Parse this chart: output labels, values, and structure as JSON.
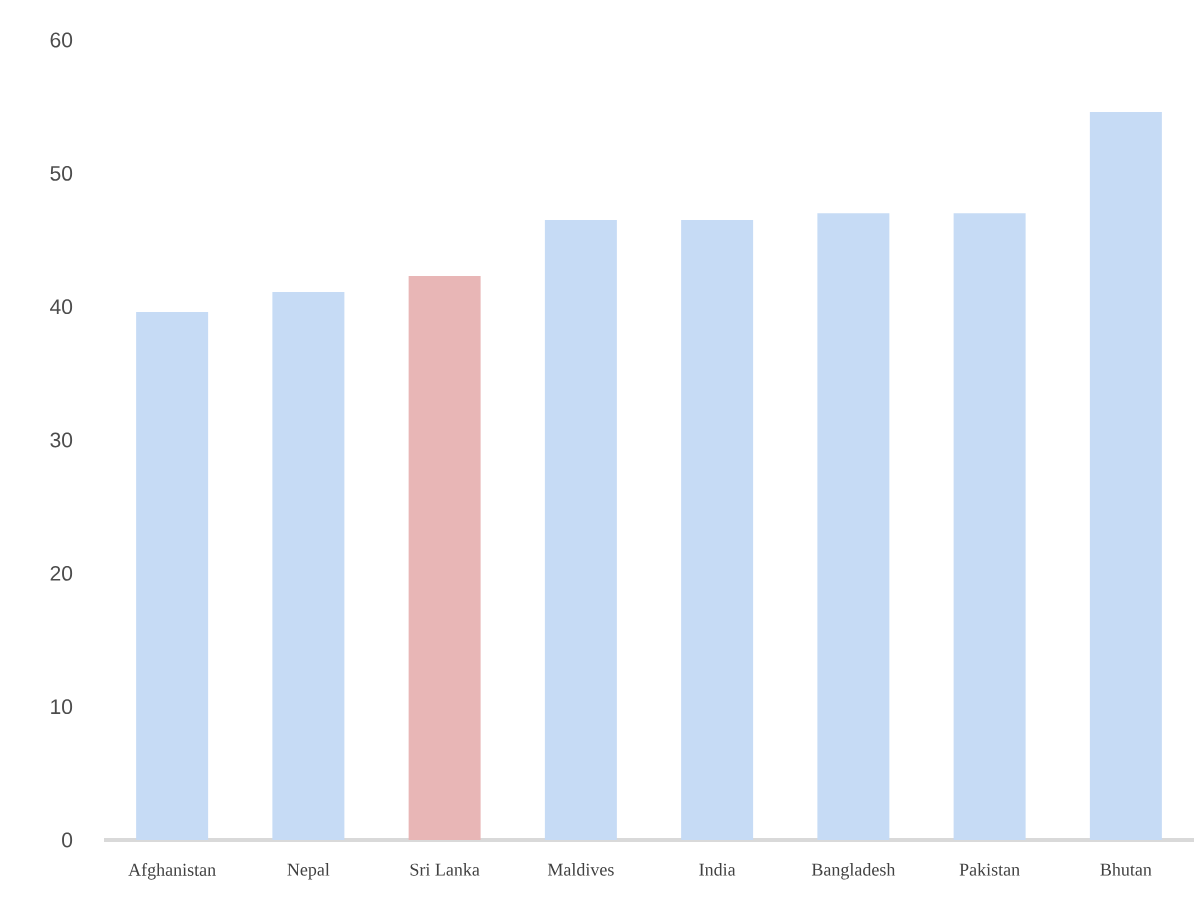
{
  "chart_data": {
    "type": "bar",
    "categories": [
      "Afghanistan",
      "Nepal",
      "Sri Lanka",
      "Maldives",
      "India",
      "Bangladesh",
      "Pakistan",
      "Bhutan"
    ],
    "values": [
      39.6,
      41.1,
      42.3,
      46.5,
      46.5,
      47.0,
      47.0,
      54.6
    ],
    "colors": [
      "#c6dbf5",
      "#c6dbf5",
      "#e8b6b6",
      "#c6dbf5",
      "#c6dbf5",
      "#c6dbf5",
      "#c6dbf5",
      "#c6dbf5"
    ],
    "ylim": [
      0,
      60
    ],
    "yticks": [
      0,
      10,
      20,
      30,
      40,
      50,
      60
    ]
  }
}
